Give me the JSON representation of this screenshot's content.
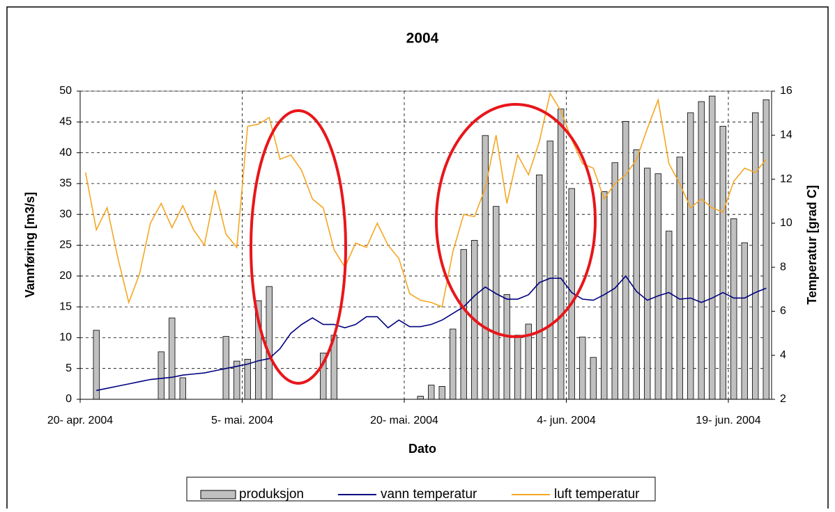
{
  "chart_data": {
    "type": "bar-line",
    "title": "2004",
    "x_label": "Dato",
    "y_label": "Vannføring [m3/s]",
    "y2_label": "Temperatur [grad C]",
    "x": [
      "2004-04-20",
      "2004-04-21",
      "2004-04-22",
      "2004-04-23",
      "2004-04-24",
      "2004-04-25",
      "2004-04-26",
      "2004-04-27",
      "2004-04-28",
      "2004-04-29",
      "2004-04-30",
      "2004-05-01",
      "2004-05-02",
      "2004-05-03",
      "2004-05-04",
      "2004-05-05",
      "2004-05-06",
      "2004-05-07",
      "2004-05-08",
      "2004-05-09",
      "2004-05-10",
      "2004-05-11",
      "2004-05-12",
      "2004-05-13",
      "2004-05-14",
      "2004-05-15",
      "2004-05-16",
      "2004-05-17",
      "2004-05-18",
      "2004-05-19",
      "2004-05-20",
      "2004-05-21",
      "2004-05-22",
      "2004-05-23",
      "2004-05-24",
      "2004-05-25",
      "2004-05-26",
      "2004-05-27",
      "2004-05-28",
      "2004-05-29",
      "2004-05-30",
      "2004-05-31",
      "2004-06-01",
      "2004-06-02",
      "2004-06-03",
      "2004-06-04",
      "2004-06-05",
      "2004-06-06",
      "2004-06-07",
      "2004-06-08",
      "2004-06-09",
      "2004-06-10",
      "2004-06-11",
      "2004-06-12",
      "2004-06-13",
      "2004-06-14",
      "2004-06-15",
      "2004-06-16",
      "2004-06-17",
      "2004-06-18",
      "2004-06-19",
      "2004-06-20",
      "2004-06-21",
      "2004-06-22"
    ],
    "series": [
      {
        "name": "produksjon",
        "kind": "bar",
        "color": "#c0c0c0",
        "axis": "y",
        "values": [
          null,
          11.2,
          null,
          null,
          null,
          null,
          null,
          7.7,
          13.2,
          3.5,
          null,
          null,
          null,
          10.2,
          6.2,
          6.5,
          16.0,
          18.3,
          null,
          null,
          null,
          null,
          7.5,
          10.4,
          null,
          null,
          null,
          null,
          null,
          null,
          null,
          0.5,
          2.3,
          2.1,
          11.4,
          24.3,
          25.8,
          42.8,
          31.3,
          17.0,
          10.4,
          12.2,
          36.4,
          41.9,
          47.1,
          34.2,
          10.1,
          6.8,
          33.7,
          38.4,
          45.1,
          40.5,
          37.5,
          36.6,
          27.3,
          39.3,
          46.5,
          48.3,
          49.2,
          44.3,
          29.3,
          25.4,
          46.5,
          48.6
        ]
      },
      {
        "name": "vann temperatur",
        "kind": "line",
        "color": "#000080",
        "axis": "y2",
        "values": [
          null,
          2.4,
          2.5,
          2.6,
          2.7,
          2.8,
          2.9,
          2.95,
          3.0,
          3.1,
          3.15,
          3.2,
          3.3,
          3.4,
          3.5,
          3.6,
          3.75,
          3.85,
          4.3,
          5.0,
          5.4,
          5.7,
          5.4,
          5.4,
          5.25,
          5.4,
          5.75,
          5.75,
          5.25,
          5.6,
          5.3,
          5.3,
          5.4,
          5.6,
          5.9,
          6.2,
          6.7,
          7.1,
          6.8,
          6.55,
          6.55,
          6.75,
          7.3,
          7.5,
          7.5,
          6.85,
          6.55,
          6.5,
          6.75,
          7.05,
          7.6,
          6.9,
          6.5,
          6.7,
          6.85,
          6.55,
          6.6,
          6.4,
          6.6,
          6.85,
          6.6,
          6.6,
          6.85,
          7.05
        ]
      },
      {
        "name": "luft temperatur",
        "kind": "line",
        "color": "#f5a623",
        "axis": "y2",
        "values": [
          12.3,
          9.7,
          10.7,
          8.4,
          6.4,
          7.7,
          10.0,
          10.9,
          9.8,
          10.8,
          9.7,
          9.0,
          11.5,
          9.5,
          8.9,
          14.4,
          14.5,
          14.8,
          12.9,
          13.1,
          12.4,
          11.1,
          10.7,
          8.8,
          8.0,
          9.1,
          8.9,
          10.0,
          9.0,
          8.4,
          6.8,
          6.5,
          6.4,
          6.2,
          8.7,
          10.4,
          10.3,
          11.6,
          14.0,
          10.9,
          13.1,
          12.2,
          13.7,
          15.9,
          15.1,
          13.8,
          12.7,
          12.5,
          11.1,
          11.8,
          12.2,
          12.9,
          14.3,
          15.6,
          12.7,
          11.8,
          10.7,
          11.1,
          10.7,
          10.5,
          11.9,
          12.5,
          12.3,
          12.9
        ]
      }
    ],
    "xlim": [
      "2004-04-20",
      "2004-06-23"
    ],
    "xticks": [
      {
        "value": "2004-04-20",
        "label": "20- apr. 2004"
      },
      {
        "value": "2004-05-05",
        "label": "5- mai. 2004"
      },
      {
        "value": "2004-05-20",
        "label": "20- mai. 2004"
      },
      {
        "value": "2004-06-04",
        "label": "4- jun. 2004"
      },
      {
        "value": "2004-06-19",
        "label": "19- jun. 2004"
      }
    ],
    "ylim": [
      0,
      50
    ],
    "yticks": [
      0,
      5,
      10,
      15,
      20,
      25,
      30,
      35,
      40,
      45,
      50
    ],
    "y2lim": [
      2,
      16
    ],
    "y2ticks": [
      2,
      4,
      6,
      8,
      10,
      12,
      14,
      16
    ],
    "grid": true,
    "legend": "bottom"
  }
}
